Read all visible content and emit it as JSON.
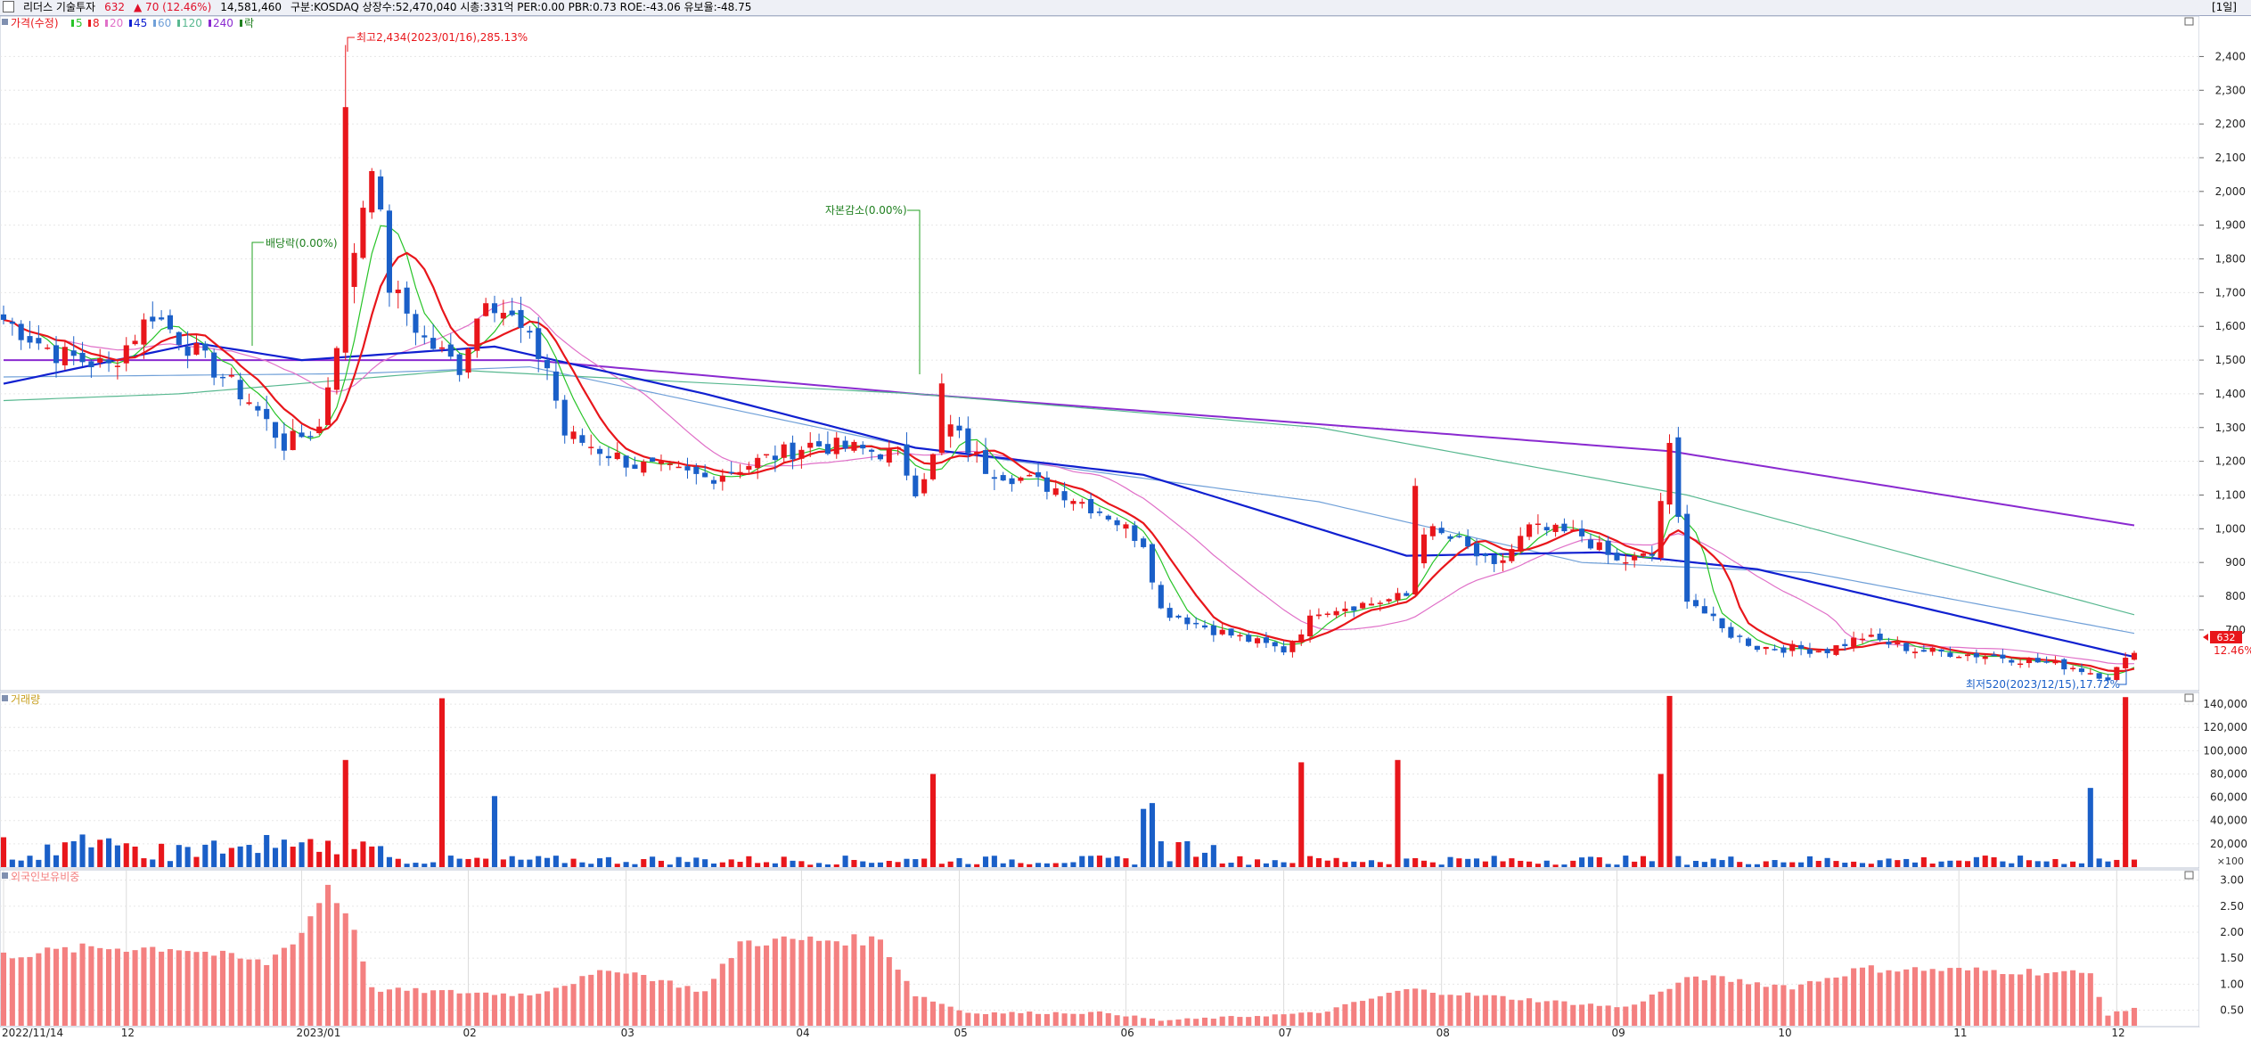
{
  "header": {
    "name": "리더스 기술투자",
    "price": "632",
    "change": "▲ 70 (12.46%)",
    "volume": "14,581,460",
    "info": "구분:KOSDAQ 상장수:52,470,040 시총:331억 PER:0.00 PBR:0.73 ROE:-43.06 유보율:-48.75",
    "period": "[1일]"
  },
  "colors": {
    "up": "#e8161b",
    "down": "#1a5fc8",
    "ma5": "#28c428",
    "ma8": "#e8161b",
    "ma20": "#e070c8",
    "ma45": "#1020d0",
    "ma60": "#70a0d8",
    "ma120": "#58b890",
    "ma240": "#8a2ad0",
    "foreign": "#f48080",
    "background": "#ffffff",
    "gridline": "#e6e6e6"
  },
  "legend": {
    "price_label": "가격(수정)",
    "ma": [
      {
        "label": "5",
        "color": "#28c428"
      },
      {
        "label": "8",
        "color": "#e8161b"
      },
      {
        "label": "20",
        "color": "#e070c8"
      },
      {
        "label": "45",
        "color": "#1020d0"
      },
      {
        "label": "60",
        "color": "#70a0d8"
      },
      {
        "label": "120",
        "color": "#58b890"
      },
      {
        "label": "240",
        "color": "#8a2ad0"
      },
      {
        "label": "락",
        "color": "#208020"
      }
    ],
    "volume_label": "거래량",
    "foreign_label": "외국인보유비중"
  },
  "annotations": {
    "high": "최고2,434(2023/01/16),285.13%",
    "low": "최저520(2023/12/15),17.72%",
    "dividend": "배당락(0.00%)",
    "capital": "자본감소(0.00%)",
    "last_price": "632",
    "last_change": "12.46%",
    "volume_unit": "×100"
  },
  "chart_data": {
    "type": "candlestick",
    "x_labels": [
      "2022/11/14",
      "12",
      "2023/01",
      "02",
      "03",
      "04",
      "05",
      "06",
      "07",
      "08",
      "09",
      "10",
      "11",
      "12"
    ],
    "price_axis": {
      "ylim": [
        520,
        2520
      ],
      "ticks": [
        "700",
        "800",
        "900",
        "1,000",
        "1,100",
        "1,200",
        "1,300",
        "1,400",
        "1,500",
        "1,600",
        "1,700",
        "1,800",
        "1,900",
        "2,000",
        "2,100",
        "2,200",
        "2,300",
        "2,400"
      ]
    },
    "volume_axis": {
      "ylim": [
        0,
        150000
      ],
      "ticks": [
        "20,000",
        "40,000",
        "60,000",
        "80,000",
        "100,000",
        "120,000",
        "140,000"
      ]
    },
    "foreign_axis": {
      "ylim": [
        0.2,
        3.2
      ],
      "ticks": [
        "0.50",
        "1.00",
        "1.50",
        "2.00",
        "2.50",
        "3.00"
      ]
    },
    "keypoints": [
      [
        0,
        1620
      ],
      [
        6,
        1520
      ],
      [
        12,
        1480
      ],
      [
        17,
        1640
      ],
      [
        22,
        1520
      ],
      [
        28,
        1380
      ],
      [
        32,
        1250
      ],
      [
        36,
        1300
      ],
      [
        38,
        1560
      ],
      [
        42,
        2100
      ],
      [
        44,
        1720
      ],
      [
        48,
        1560
      ],
      [
        52,
        1480
      ],
      [
        55,
        1700
      ],
      [
        58,
        1620
      ],
      [
        62,
        1480
      ],
      [
        64,
        1280
      ],
      [
        72,
        1190
      ],
      [
        80,
        1150
      ],
      [
        86,
        1200
      ],
      [
        92,
        1250
      ],
      [
        96,
        1240
      ],
      [
        102,
        1220
      ],
      [
        104,
        1120
      ],
      [
        108,
        1300
      ],
      [
        112,
        1180
      ],
      [
        120,
        1120
      ],
      [
        126,
        1040
      ],
      [
        130,
        960
      ],
      [
        132,
        760
      ],
      [
        138,
        700
      ],
      [
        146,
        640
      ],
      [
        150,
        760
      ],
      [
        156,
        780
      ],
      [
        160,
        800
      ],
      [
        162,
        1000
      ],
      [
        166,
        960
      ],
      [
        170,
        880
      ],
      [
        174,
        1000
      ],
      [
        180,
        980
      ],
      [
        184,
        900
      ],
      [
        188,
        920
      ],
      [
        190,
        1250
      ],
      [
        192,
        800
      ],
      [
        196,
        700
      ],
      [
        200,
        650
      ],
      [
        208,
        640
      ],
      [
        212,
        680
      ],
      [
        218,
        640
      ],
      [
        228,
        620
      ],
      [
        236,
        590
      ],
      [
        240,
        560
      ],
      [
        243,
        632
      ]
    ],
    "spikes": [
      {
        "i": 39,
        "high": 2434
      },
      {
        "i": 190,
        "high": 1280
      },
      {
        "i": 107,
        "high": 1460
      },
      {
        "i": 161,
        "high": 1150
      }
    ],
    "ma_series": {
      "ma240": [
        [
          0,
          1500
        ],
        [
          60,
          1500
        ],
        [
          104,
          1400
        ],
        [
          150,
          1310
        ],
        [
          190,
          1230
        ],
        [
          243,
          1010
        ]
      ],
      "ma120": [
        [
          0,
          1380
        ],
        [
          20,
          1400
        ],
        [
          52,
          1470
        ],
        [
          104,
          1400
        ],
        [
          150,
          1300
        ],
        [
          192,
          1100
        ],
        [
          243,
          745
        ]
      ],
      "ma60": [
        [
          0,
          1450
        ],
        [
          40,
          1460
        ],
        [
          60,
          1480
        ],
        [
          104,
          1240
        ],
        [
          150,
          1080
        ],
        [
          180,
          900
        ],
        [
          206,
          870
        ],
        [
          243,
          690
        ]
      ],
      "ma45": [
        [
          0,
          1430
        ],
        [
          22,
          1550
        ],
        [
          34,
          1500
        ],
        [
          56,
          1540
        ],
        [
          80,
          1400
        ],
        [
          104,
          1240
        ],
        [
          130,
          1160
        ],
        [
          160,
          920
        ],
        [
          182,
          930
        ],
        [
          200,
          880
        ],
        [
          243,
          620
        ]
      ]
    },
    "volume": {
      "high_bars": [
        {
          "i": 50,
          "v": 145000
        },
        {
          "i": 106,
          "v": 80000
        },
        {
          "i": 148,
          "v": 90000
        },
        {
          "i": 159,
          "v": 92000
        },
        {
          "i": 189,
          "v": 80000
        },
        {
          "i": 190,
          "v": 147000
        },
        {
          "i": 238,
          "v": 68000
        },
        {
          "i": 242,
          "v": 146000
        },
        {
          "i": 39,
          "v": 92000
        },
        {
          "i": 56,
          "v": 61000
        },
        {
          "i": 130,
          "v": 50000
        },
        {
          "i": 131,
          "v": 55000
        }
      ]
    },
    "foreign_holding": [
      [
        0,
        1.55
      ],
      [
        10,
        1.7
      ],
      [
        20,
        1.7
      ],
      [
        30,
        1.4
      ],
      [
        34,
        2.0
      ],
      [
        37,
        2.9
      ],
      [
        40,
        2.1
      ],
      [
        42,
        0.9
      ],
      [
        60,
        0.8
      ],
      [
        70,
        1.3
      ],
      [
        80,
        0.85
      ],
      [
        84,
        1.8
      ],
      [
        90,
        1.85
      ],
      [
        100,
        1.85
      ],
      [
        104,
        0.8
      ],
      [
        110,
        0.45
      ],
      [
        126,
        0.45
      ],
      [
        132,
        0.3
      ],
      [
        150,
        0.45
      ],
      [
        160,
        0.9
      ],
      [
        185,
        0.55
      ],
      [
        193,
        1.15
      ],
      [
        204,
        0.95
      ],
      [
        212,
        1.3
      ],
      [
        230,
        1.25
      ],
      [
        238,
        1.2
      ],
      [
        240,
        0.4
      ],
      [
        243,
        0.55
      ]
    ]
  }
}
